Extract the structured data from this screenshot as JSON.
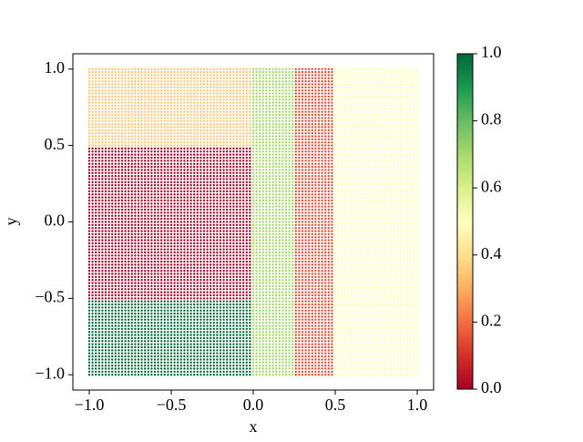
{
  "chart_data": {
    "type": "scatter",
    "xlabel": "x",
    "ylabel": "y",
    "xlim": [
      -1.1,
      1.1
    ],
    "ylim": [
      -1.1,
      1.1
    ],
    "xticks": [
      {
        "value": -1.0,
        "label": "−1.0"
      },
      {
        "value": -0.5,
        "label": "−0.5"
      },
      {
        "value": 0.0,
        "label": "0.0"
      },
      {
        "value": 0.5,
        "label": "0.5"
      },
      {
        "value": 1.0,
        "label": "1.0"
      }
    ],
    "yticks": [
      {
        "value": -1.0,
        "label": "−1.0"
      },
      {
        "value": -0.5,
        "label": "−0.5"
      },
      {
        "value": 0.0,
        "label": "0.0"
      },
      {
        "value": 0.5,
        "label": "0.5"
      },
      {
        "value": 1.0,
        "label": "1.0"
      }
    ],
    "colormap": "RdYlGn",
    "clim": [
      0,
      1
    ],
    "cticks": [
      {
        "value": 0,
        "label": "0.0"
      },
      {
        "value": 0.2,
        "label": "0.2"
      },
      {
        "value": 0.4,
        "label": "0.4"
      },
      {
        "value": 0.6,
        "label": "0.6"
      },
      {
        "value": 0.8,
        "label": "0.8"
      },
      {
        "value": 1,
        "label": "1.0"
      }
    ],
    "regions": [
      {
        "x": [
          -1,
          0
        ],
        "y": [
          0.5,
          1
        ],
        "value": 0.35
      },
      {
        "x": [
          -1,
          0
        ],
        "y": [
          -0.5,
          0.5
        ],
        "value": 0.0
      },
      {
        "x": [
          -1,
          0
        ],
        "y": [
          -1,
          -0.5
        ],
        "value": 1.0
      },
      {
        "x": [
          0,
          0.25
        ],
        "y": [
          -1,
          1
        ],
        "value": 0.7
      },
      {
        "x": [
          0.25,
          0.5
        ],
        "y": [
          -1,
          1
        ],
        "value": 0.15
      },
      {
        "x": [
          0.5,
          1
        ],
        "y": [
          -1,
          1
        ],
        "value": 0.5
      }
    ]
  }
}
